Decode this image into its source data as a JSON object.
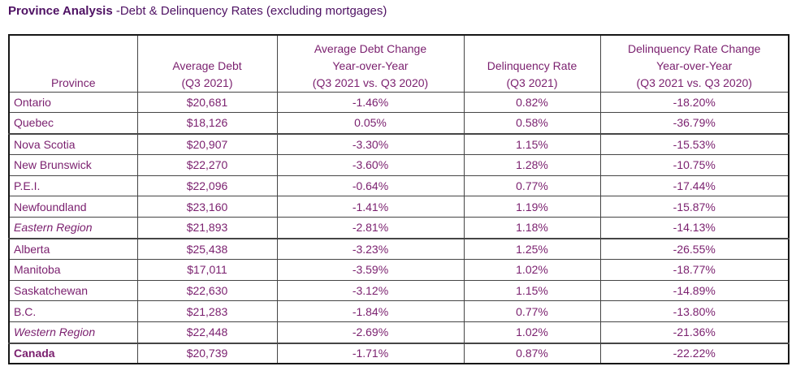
{
  "title": {
    "bold": "Province Analysis",
    "rest": " -Debt & Delinquency Rates (excluding mortgages)"
  },
  "colors": {
    "title_text": "#4e1163",
    "table_text": "#7a1f6e",
    "border_outer": "#161616",
    "border_inner": "#454545"
  },
  "table": {
    "columns": [
      {
        "key": "province",
        "lines": [
          "Province"
        ]
      },
      {
        "key": "avg_debt",
        "lines": [
          "Average Debt",
          "(Q3 2021)"
        ]
      },
      {
        "key": "debt_change",
        "lines": [
          "Average Debt Change",
          "Year-over-Year",
          "(Q3 2021 vs. Q3 2020)"
        ]
      },
      {
        "key": "delinq_rate",
        "lines": [
          "Delinquency Rate",
          "(Q3 2021)"
        ]
      },
      {
        "key": "delinq_change",
        "lines": [
          "Delinquency Rate Change",
          "Year-over-Year",
          "(Q3 2021 vs. Q3 2020)"
        ]
      }
    ],
    "rows": [
      {
        "province": "Ontario",
        "avg_debt": "$20,681",
        "debt_change": "-1.46%",
        "delinq_rate": "0.82%",
        "delinq_change": "-18.20%",
        "style": "normal",
        "group_end": false
      },
      {
        "province": "Quebec",
        "avg_debt": "$18,126",
        "debt_change": "0.05%",
        "delinq_rate": "0.58%",
        "delinq_change": "-36.79%",
        "style": "normal",
        "group_end": true
      },
      {
        "province": "Nova Scotia",
        "avg_debt": "$20,907",
        "debt_change": "-3.30%",
        "delinq_rate": "1.15%",
        "delinq_change": "-15.53%",
        "style": "normal",
        "group_end": false
      },
      {
        "province": "New Brunswick",
        "avg_debt": "$22,270",
        "debt_change": "-3.60%",
        "delinq_rate": "1.28%",
        "delinq_change": "-10.75%",
        "style": "normal",
        "group_end": false
      },
      {
        "province": "P.E.I.",
        "avg_debt": "$22,096",
        "debt_change": "-0.64%",
        "delinq_rate": "0.77%",
        "delinq_change": "-17.44%",
        "style": "normal",
        "group_end": false
      },
      {
        "province": "Newfoundland",
        "avg_debt": "$23,160",
        "debt_change": "-1.41%",
        "delinq_rate": "1.19%",
        "delinq_change": "-15.87%",
        "style": "normal",
        "group_end": false
      },
      {
        "province": "Eastern Region",
        "avg_debt": "$21,893",
        "debt_change": "-2.81%",
        "delinq_rate": "1.18%",
        "delinq_change": "-14.13%",
        "style": "italic",
        "group_end": true
      },
      {
        "province": "Alberta",
        "avg_debt": "$25,438",
        "debt_change": "-3.23%",
        "delinq_rate": "1.25%",
        "delinq_change": "-26.55%",
        "style": "normal",
        "group_end": false
      },
      {
        "province": "Manitoba",
        "avg_debt": "$17,011",
        "debt_change": "-3.59%",
        "delinq_rate": "1.02%",
        "delinq_change": "-18.77%",
        "style": "normal",
        "group_end": false
      },
      {
        "province": "Saskatchewan",
        "avg_debt": "$22,630",
        "debt_change": "-3.12%",
        "delinq_rate": "1.15%",
        "delinq_change": "-14.89%",
        "style": "normal",
        "group_end": false
      },
      {
        "province": "B.C.",
        "avg_debt": "$21,283",
        "debt_change": "-1.84%",
        "delinq_rate": "0.77%",
        "delinq_change": "-13.80%",
        "style": "normal",
        "group_end": false
      },
      {
        "province": "Western Region",
        "avg_debt": "$22,448",
        "debt_change": "-2.69%",
        "delinq_rate": "1.02%",
        "delinq_change": "-21.36%",
        "style": "italic",
        "group_end": true
      },
      {
        "province": "Canada",
        "avg_debt": "$20,739",
        "debt_change": "-1.71%",
        "delinq_rate": "0.87%",
        "delinq_change": "-22.22%",
        "style": "bold",
        "group_end": false
      }
    ]
  }
}
